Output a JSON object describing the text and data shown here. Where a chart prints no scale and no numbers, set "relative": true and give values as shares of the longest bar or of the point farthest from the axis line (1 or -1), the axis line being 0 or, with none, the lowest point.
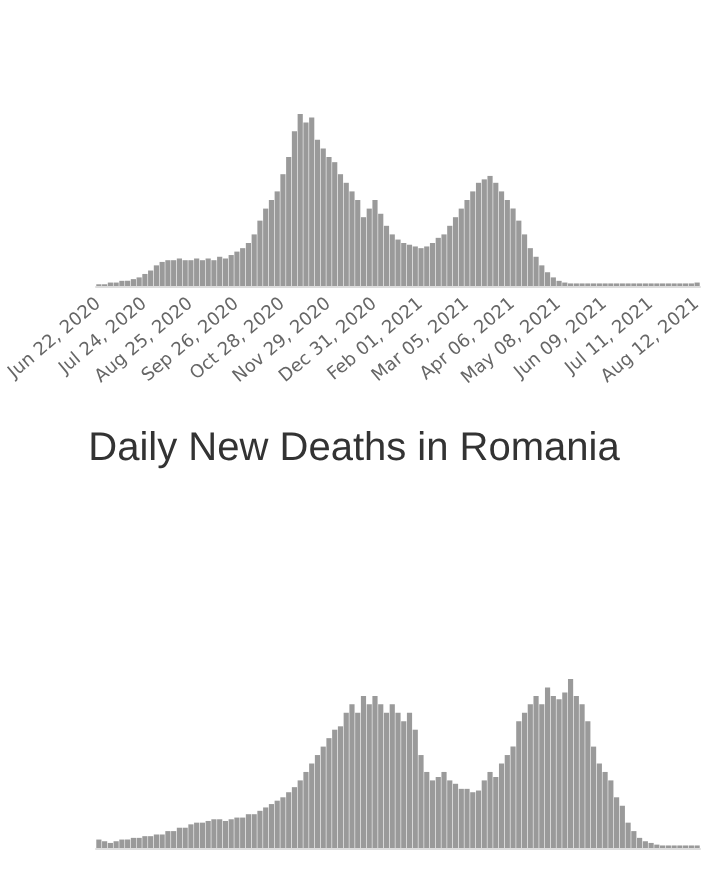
{
  "chart_data": [
    {
      "type": "bar",
      "relative": true,
      "color": "#9a9a9a",
      "categories": [
        "Jun 22, 2020",
        null,
        null,
        null,
        null,
        null,
        null,
        null,
        "Jul 24, 2020",
        null,
        null,
        null,
        null,
        null,
        null,
        null,
        "Aug 25, 2020",
        null,
        null,
        null,
        null,
        null,
        null,
        null,
        "Sep 26, 2020",
        null,
        null,
        null,
        null,
        null,
        null,
        null,
        "Oct 28, 2020",
        null,
        null,
        null,
        null,
        null,
        null,
        null,
        "Nov 29, 2020",
        null,
        null,
        null,
        null,
        null,
        null,
        null,
        "Dec 31, 2020",
        null,
        null,
        null,
        null,
        null,
        null,
        null,
        "Feb 01, 2021",
        null,
        null,
        null,
        null,
        null,
        null,
        null,
        "Mar 05, 2021",
        null,
        null,
        null,
        null,
        null,
        null,
        null,
        "Apr 06, 2021",
        null,
        null,
        null,
        null,
        null,
        null,
        null,
        "May 08, 2021",
        null,
        null,
        null,
        null,
        null,
        null,
        null,
        "Jun 09, 2021",
        null,
        null,
        null,
        null,
        null,
        null,
        null,
        "Jul 11, 2021",
        null,
        null,
        null,
        null,
        null,
        null,
        null,
        "Aug 12, 2021"
      ],
      "values": [
        0.01,
        0.01,
        0.02,
        0.02,
        0.03,
        0.03,
        0.04,
        0.05,
        0.07,
        0.09,
        0.12,
        0.14,
        0.15,
        0.15,
        0.16,
        0.15,
        0.15,
        0.16,
        0.15,
        0.16,
        0.15,
        0.17,
        0.16,
        0.18,
        0.2,
        0.22,
        0.25,
        0.3,
        0.38,
        0.45,
        0.5,
        0.55,
        0.65,
        0.75,
        0.9,
        1.0,
        0.95,
        0.98,
        0.85,
        0.8,
        0.75,
        0.72,
        0.65,
        0.6,
        0.55,
        0.5,
        0.4,
        0.45,
        0.5,
        0.42,
        0.35,
        0.3,
        0.27,
        0.25,
        0.24,
        0.23,
        0.22,
        0.23,
        0.25,
        0.28,
        0.3,
        0.35,
        0.4,
        0.45,
        0.5,
        0.55,
        0.6,
        0.62,
        0.64,
        0.6,
        0.55,
        0.5,
        0.45,
        0.38,
        0.3,
        0.22,
        0.17,
        0.12,
        0.08,
        0.05,
        0.03,
        0.02,
        0.015,
        0.015,
        0.015,
        0.015,
        0.015,
        0.015,
        0.015,
        0.015,
        0.015,
        0.015,
        0.015,
        0.015,
        0.015,
        0.015,
        0.015,
        0.015,
        0.015,
        0.015,
        0.015,
        0.015,
        0.015,
        0.015,
        0.02
      ]
    },
    {
      "type": "bar",
      "relative": true,
      "title": "Daily New Deaths in Romania",
      "color": "#9a9a9a",
      "categories": [
        null,
        null,
        null,
        null,
        null,
        null,
        null,
        null,
        null,
        null,
        null,
        null,
        null,
        null,
        null,
        null,
        null,
        null,
        null,
        null,
        null,
        null,
        null,
        null,
        null,
        null,
        null,
        null,
        null,
        null,
        null,
        null,
        null,
        null,
        null,
        null,
        null,
        null,
        null,
        null,
        null,
        null,
        null,
        null,
        null,
        null,
        null,
        null,
        null,
        null,
        null,
        null,
        null,
        null,
        null,
        null,
        null,
        null,
        null,
        null,
        null,
        null,
        null,
        null,
        null,
        null,
        null,
        null,
        null,
        null,
        null,
        null,
        null,
        null,
        null,
        null,
        null,
        null,
        null,
        null,
        null,
        null,
        null,
        null,
        null,
        null,
        null,
        null,
        null,
        null,
        null,
        null,
        null,
        null,
        null,
        null,
        null,
        null,
        null,
        null,
        null,
        null,
        null,
        null,
        null
      ],
      "values": [
        0.05,
        0.04,
        0.03,
        0.04,
        0.05,
        0.05,
        0.06,
        0.06,
        0.07,
        0.07,
        0.08,
        0.08,
        0.1,
        0.1,
        0.12,
        0.12,
        0.14,
        0.15,
        0.15,
        0.16,
        0.17,
        0.17,
        0.16,
        0.17,
        0.18,
        0.18,
        0.2,
        0.2,
        0.22,
        0.24,
        0.26,
        0.28,
        0.3,
        0.33,
        0.36,
        0.4,
        0.45,
        0.5,
        0.55,
        0.6,
        0.65,
        0.7,
        0.72,
        0.8,
        0.85,
        0.8,
        0.9,
        0.85,
        0.9,
        0.85,
        0.8,
        0.85,
        0.8,
        0.75,
        0.8,
        0.7,
        0.55,
        0.45,
        0.4,
        0.42,
        0.45,
        0.4,
        0.38,
        0.35,
        0.35,
        0.33,
        0.34,
        0.4,
        0.45,
        0.42,
        0.5,
        0.55,
        0.6,
        0.75,
        0.8,
        0.85,
        0.9,
        0.85,
        0.95,
        0.9,
        0.88,
        0.92,
        1.0,
        0.9,
        0.85,
        0.75,
        0.6,
        0.5,
        0.45,
        0.4,
        0.3,
        0.25,
        0.15,
        0.1,
        0.06,
        0.04,
        0.03,
        0.02,
        0.015,
        0.015,
        0.015,
        0.015,
        0.015,
        0.015,
        0.015
      ]
    }
  ]
}
